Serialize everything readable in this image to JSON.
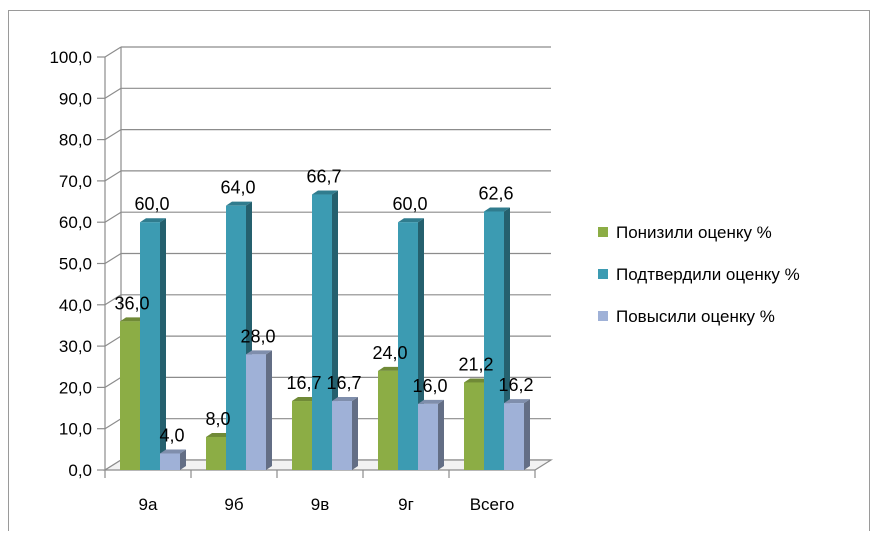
{
  "chart_data": {
    "type": "bar",
    "style": "3d-clustered-column",
    "categories": [
      "9а",
      "9б",
      "9в",
      "9г",
      "Всего"
    ],
    "series": [
      {
        "name": "Понизили оценку %",
        "values": [
          36.0,
          8.0,
          16.7,
          24.0,
          21.2
        ],
        "color": "#8cad45",
        "labels": [
          "36,0",
          "8,0",
          "16,7",
          "24,0",
          "21,2"
        ]
      },
      {
        "name": "Подтвердили оценку %",
        "values": [
          60.0,
          64.0,
          66.7,
          60.0,
          62.6
        ],
        "color": "#3c9bb2",
        "labels": [
          "60,0",
          "64,0",
          "66,7",
          "60,0",
          "62,6"
        ]
      },
      {
        "name": "Повысили оценку %",
        "values": [
          4.0,
          28.0,
          16.7,
          16.0,
          16.2
        ],
        "color": "#9fb1d7",
        "labels": [
          "4,0",
          "28,0",
          "16,7",
          "16,0",
          "16,2"
        ]
      }
    ],
    "ylim": [
      0,
      100
    ],
    "yticks": [
      "0,0",
      "10,0",
      "20,0",
      "30,0",
      "40,0",
      "50,0",
      "60,0",
      "70,0",
      "80,0",
      "90,0",
      "100,0"
    ],
    "grid": true,
    "legend_position": "right",
    "title": "",
    "xlabel": "",
    "ylabel": ""
  }
}
